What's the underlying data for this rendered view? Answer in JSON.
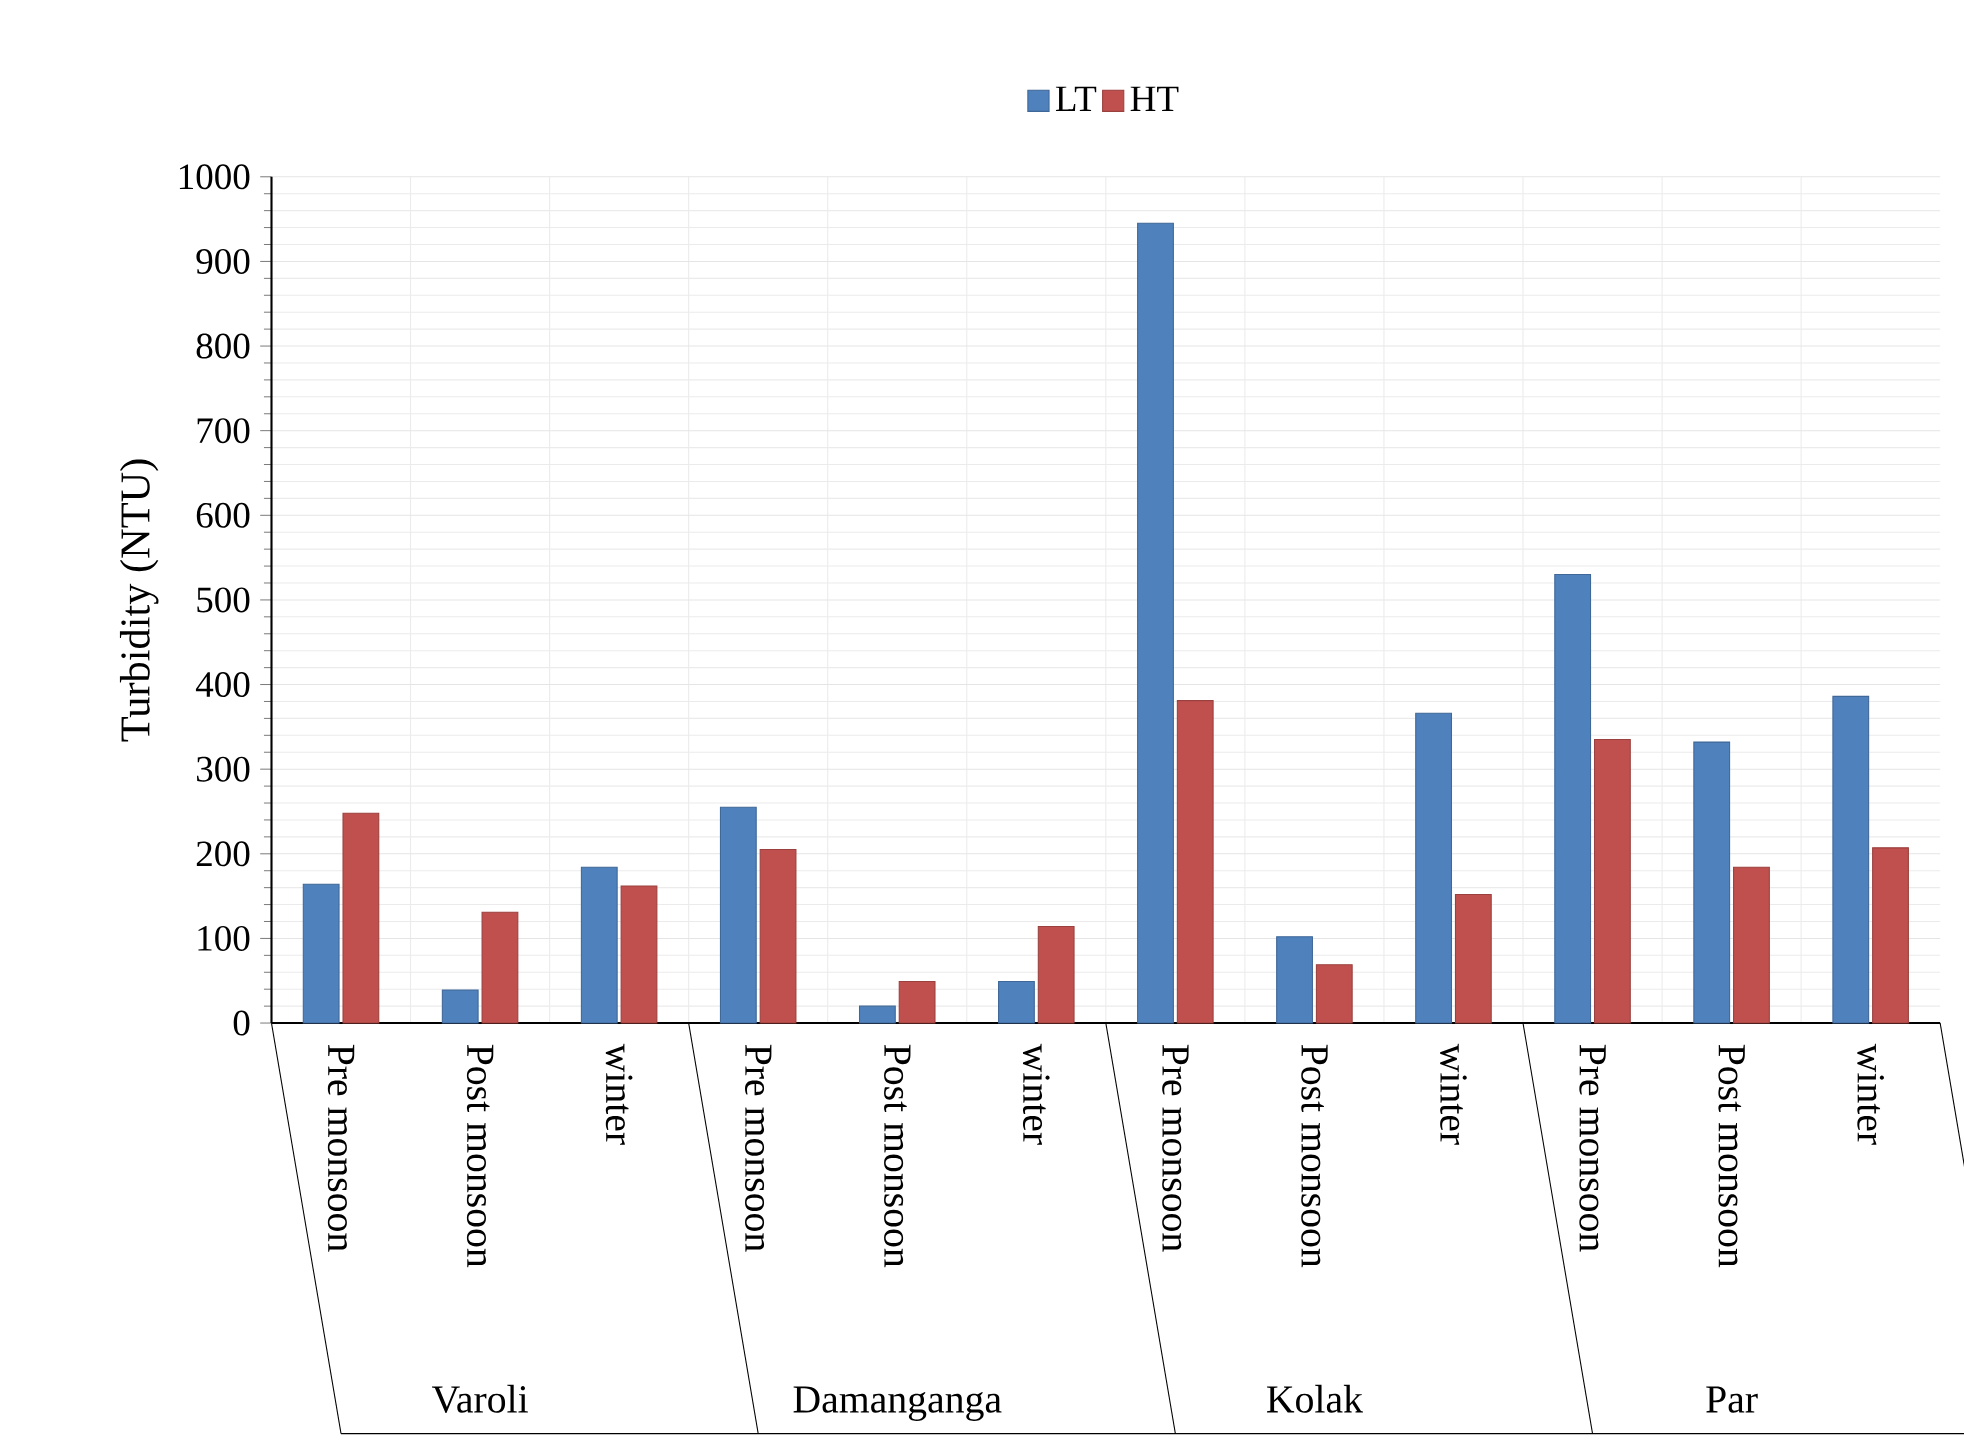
{
  "chart_data": {
    "type": "bar",
    "ylabel": "Turbidity (NTU)",
    "categories": [
      "Pre monsoon",
      "Post monsoon",
      "winter",
      "Pre monsoon",
      "Post monsoon",
      "winter",
      "Pre monsoon",
      "Post monsoon",
      "winter",
      "Pre monsoon",
      "Post monsoon",
      "winter"
    ],
    "series": [
      {
        "name": "LT",
        "color": "#4f81bd",
        "values": [
          164,
          39,
          184,
          255,
          20,
          49,
          945,
          102,
          366,
          530,
          332,
          386
        ]
      },
      {
        "name": "HT",
        "color": "#c0504d",
        "values": [
          248,
          131,
          162,
          205,
          49,
          114,
          381,
          69,
          152,
          335,
          184,
          207
        ]
      }
    ],
    "annotations": [
      "Varoli",
      "Damanganga",
      "Kolak",
      "Par"
    ],
    "ylim": [
      0,
      1000
    ],
    "yticks": [
      0,
      100,
      200,
      300,
      400,
      500,
      600,
      700,
      800,
      900,
      1000
    ],
    "grid": true,
    "legend": "top"
  }
}
